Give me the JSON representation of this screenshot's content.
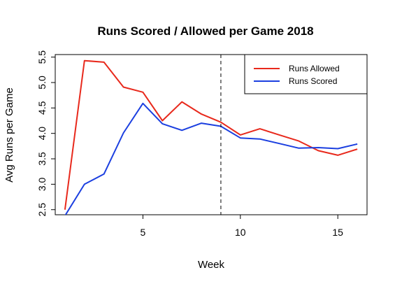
{
  "chart_data": {
    "type": "line",
    "title": "Runs Scored / Allowed per Game 2018",
    "xlabel": "Week",
    "ylabel": "Avg Runs per Game",
    "xlim": [
      0.5,
      16.5
    ],
    "ylim": [
      2.4,
      5.55
    ],
    "x_ticks": [
      5,
      10,
      15
    ],
    "y_ticks": [
      2.5,
      3.0,
      3.5,
      4.0,
      4.5,
      5.0,
      5.5
    ],
    "y_tick_labels": [
      "2.5",
      "3.0",
      "3.5",
      "4.0",
      "4.5",
      "5.0",
      "5.5"
    ],
    "grid": false,
    "legend_position": "top-right",
    "reference_line": {
      "x": 9,
      "style": "dashed",
      "color": "#000000"
    },
    "x": [
      1,
      2,
      3,
      4,
      5,
      6,
      7,
      8,
      9,
      10,
      11,
      12,
      13,
      14,
      15,
      16
    ],
    "series": [
      {
        "name": "Runs Allowed",
        "color": "#e8291c",
        "values": [
          2.5,
          5.43,
          5.4,
          4.91,
          4.81,
          4.25,
          4.62,
          4.38,
          4.22,
          3.97,
          4.09,
          3.97,
          3.85,
          3.66,
          3.57,
          3.69
        ]
      },
      {
        "name": "Runs Scored",
        "color": "#1b3fe0",
        "values": [
          2.38,
          3.0,
          3.2,
          4.01,
          4.59,
          4.19,
          4.06,
          4.2,
          4.14,
          3.91,
          3.89,
          3.8,
          3.71,
          3.72,
          3.7,
          3.79
        ]
      }
    ]
  }
}
